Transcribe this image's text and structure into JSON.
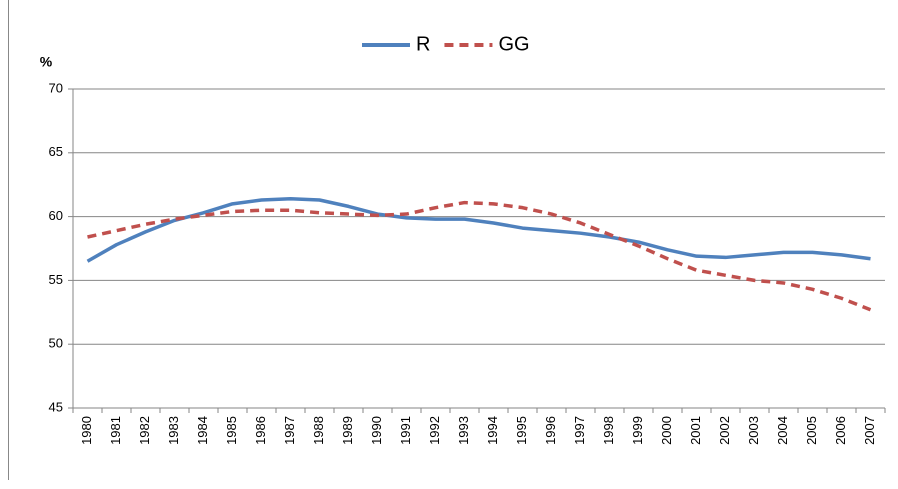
{
  "chart_data": {
    "type": "line",
    "y_label": "%",
    "categories": [
      "1980",
      "1981",
      "1982",
      "1983",
      "1984",
      "1985",
      "1986",
      "1987",
      "1988",
      "1989",
      "1990",
      "1991",
      "1992",
      "1993",
      "1994",
      "1995",
      "1996",
      "1997",
      "1998",
      "1999",
      "2000",
      "2001",
      "2002",
      "2003",
      "2004",
      "2005",
      "2006",
      "2007"
    ],
    "series": [
      {
        "name": "R",
        "color": "#4f81bd",
        "dash": "solid",
        "values": [
          56.5,
          57.8,
          58.8,
          59.7,
          60.3,
          61.0,
          61.3,
          61.4,
          61.3,
          60.8,
          60.2,
          59.9,
          59.8,
          59.8,
          59.5,
          59.1,
          58.9,
          58.7,
          58.4,
          58.0,
          57.4,
          56.9,
          56.8,
          57.0,
          57.2,
          57.2,
          57.0,
          56.7
        ]
      },
      {
        "name": "GG",
        "color": "#c0504d",
        "dash": "dashed",
        "values": [
          58.4,
          58.9,
          59.4,
          59.8,
          60.1,
          60.4,
          60.5,
          60.5,
          60.3,
          60.2,
          60.1,
          60.2,
          60.7,
          61.1,
          61.0,
          60.7,
          60.2,
          59.5,
          58.6,
          57.7,
          56.7,
          55.8,
          55.4,
          55.0,
          54.8,
          54.3,
          53.6,
          52.7
        ]
      }
    ],
    "ylim": [
      45,
      70
    ],
    "yticks": [
      45,
      50,
      55,
      60,
      65,
      70
    ],
    "grid": true,
    "legend": "top"
  }
}
